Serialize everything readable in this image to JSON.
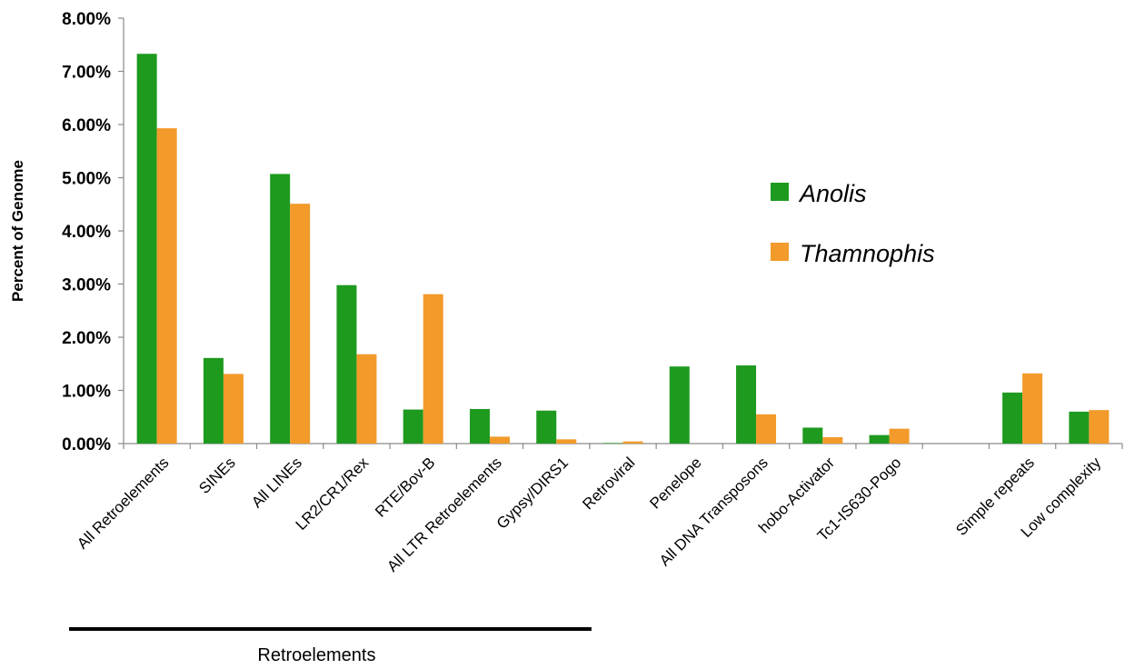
{
  "chart_data": {
    "type": "bar",
    "title": "",
    "xlabel": "",
    "ylabel": "Percent of Genome",
    "ylim": [
      0,
      0.08
    ],
    "y_tick_format": "percent-2dp",
    "y_ticks": [
      "0.00%",
      "1.00%",
      "2.00%",
      "3.00%",
      "4.00%",
      "5.00%",
      "6.00%",
      "7.00%",
      "8.00%"
    ],
    "grid": false,
    "legend_position": "right",
    "categories": [
      "All Retroelements",
      "SINEs",
      "All LINEs",
      "LR2/CR1/Rex",
      "RTE/Bov-B",
      "All LTR Retroelements",
      "Gypsy/DIRS1",
      "Retroviral",
      "Penelope",
      "All DNA Transposons",
      "hobo-Activator",
      "Tc1-IS630-Pogo",
      "",
      "Simple repeats",
      "Low complexity"
    ],
    "series": [
      {
        "name": "Anolis",
        "color": "#1e9a1e",
        "values": [
          0.0733,
          0.0161,
          0.0507,
          0.0298,
          0.0064,
          0.0065,
          0.0062,
          0.0001,
          0.0145,
          0.0147,
          0.003,
          0.0016,
          null,
          0.0096,
          0.006
        ]
      },
      {
        "name": "Thamnophis",
        "color": "#f29a2a",
        "values": [
          0.0593,
          0.0131,
          0.0451,
          0.0168,
          0.0281,
          0.0013,
          0.0008,
          0.0004,
          0.0,
          0.0055,
          0.0012,
          0.0028,
          null,
          0.0132,
          0.0063
        ]
      }
    ],
    "group_annotation": {
      "label": "Retroelements",
      "span_start": "All Retroelements",
      "span_end": "Gypsy/DIRS1"
    }
  }
}
